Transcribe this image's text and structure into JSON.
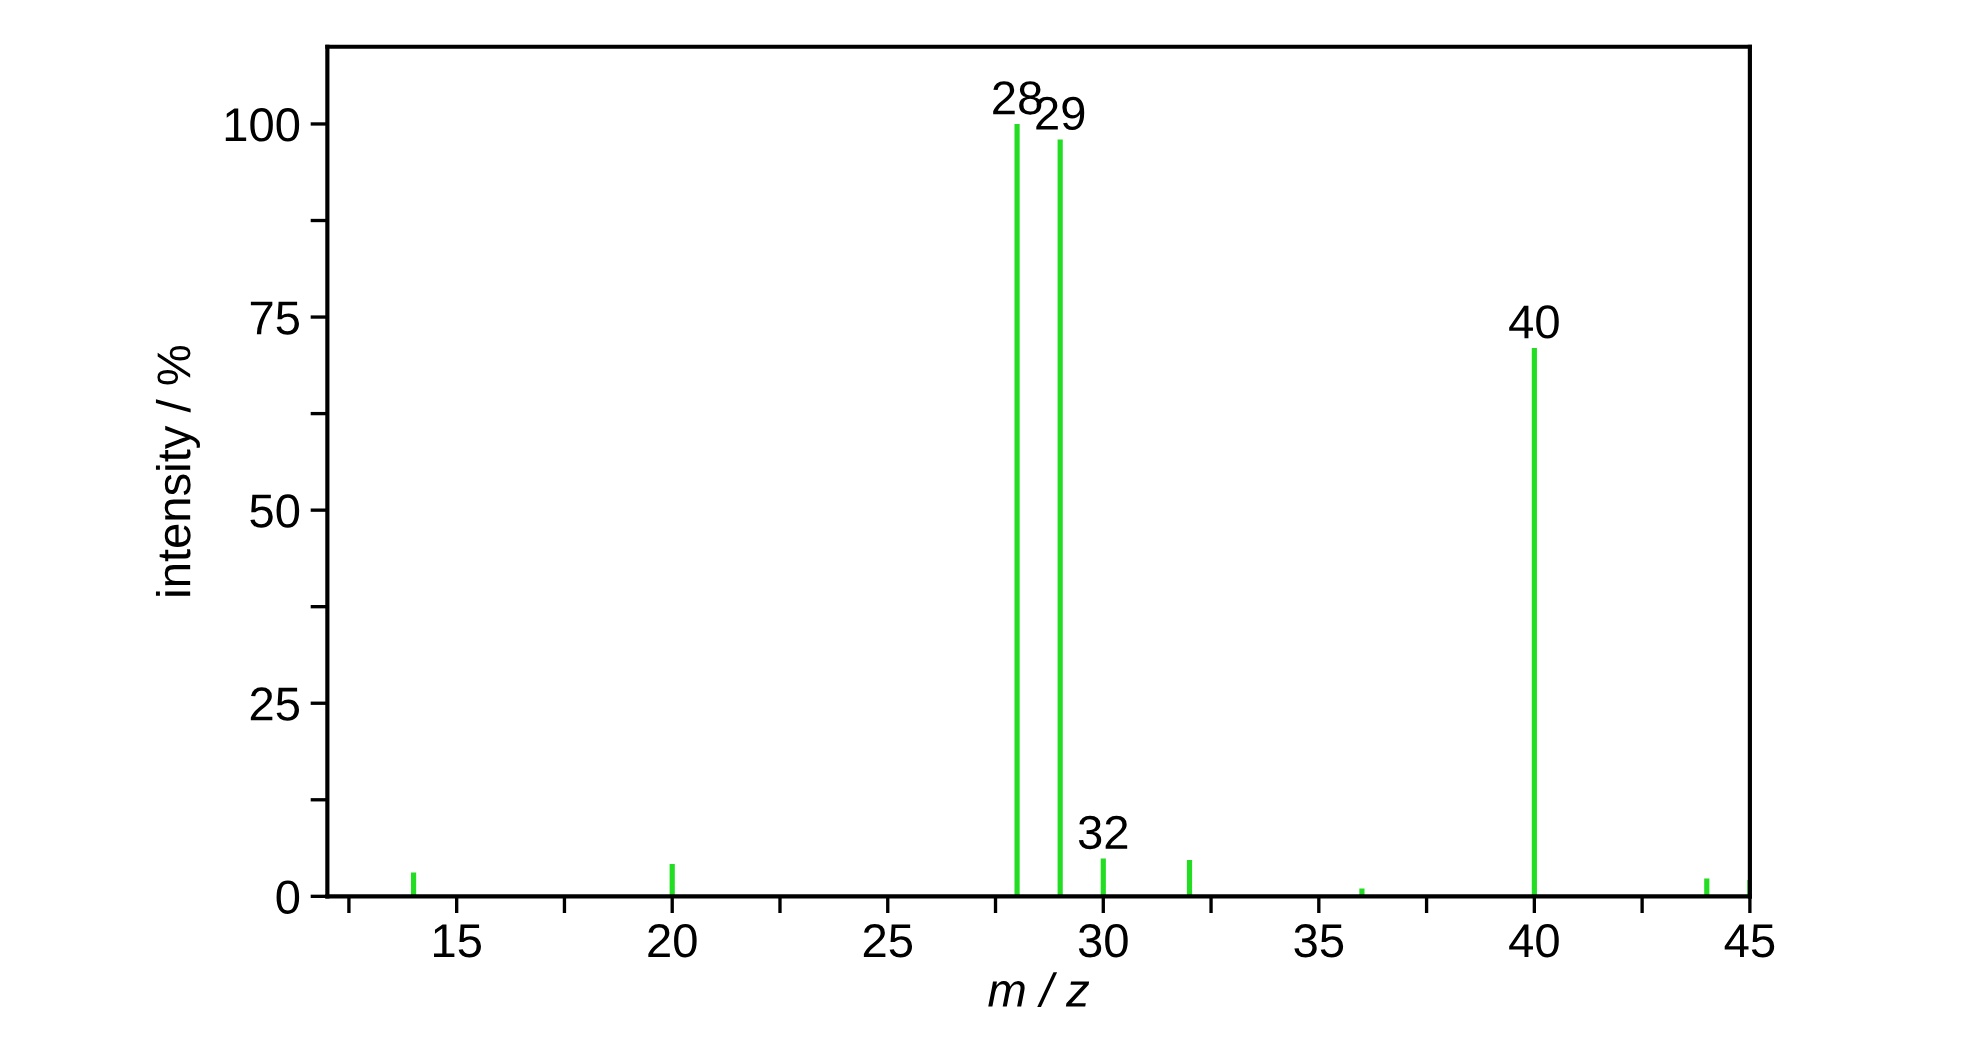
{
  "chart_data": {
    "type": "bar",
    "xlabel": "m / z",
    "ylabel": "intensity / %",
    "x": [
      14,
      20,
      28,
      29,
      30,
      32,
      36,
      40,
      44,
      45
    ],
    "values": [
      3.1,
      4.2,
      100,
      98,
      4.9,
      4.7,
      1.0,
      71,
      2.3,
      2.1
    ],
    "color": "#22dd22",
    "xlim": [
      12,
      45
    ],
    "ylim": [
      0,
      110
    ],
    "xticks": [
      {
        "value": 12.5,
        "label": null
      },
      15,
      {
        "value": 17.5,
        "label": null
      },
      20,
      {
        "value": 22.5,
        "label": null
      },
      25,
      {
        "value": 27.5,
        "label": null
      },
      30,
      {
        "value": 32.5,
        "label": null
      },
      35,
      {
        "value": 37.5,
        "label": null
      },
      40,
      {
        "value": 42.5,
        "label": null
      },
      45
    ],
    "yticks": [
      0,
      {
        "value": 12.5,
        "label": null
      },
      25,
      {
        "value": 37.5,
        "label": null
      },
      50,
      {
        "value": 62.5,
        "label": null
      },
      75,
      {
        "value": 87.5,
        "label": null
      },
      100
    ],
    "annotations": [
      {
        "text": "28",
        "x": 28,
        "y": 100
      },
      {
        "text": "29",
        "x": 29,
        "y": 98
      },
      {
        "text": "32",
        "x": 30,
        "y": 4.9
      },
      {
        "text": "40",
        "x": 40,
        "y": 71
      }
    ],
    "grid": false,
    "legend": false
  }
}
